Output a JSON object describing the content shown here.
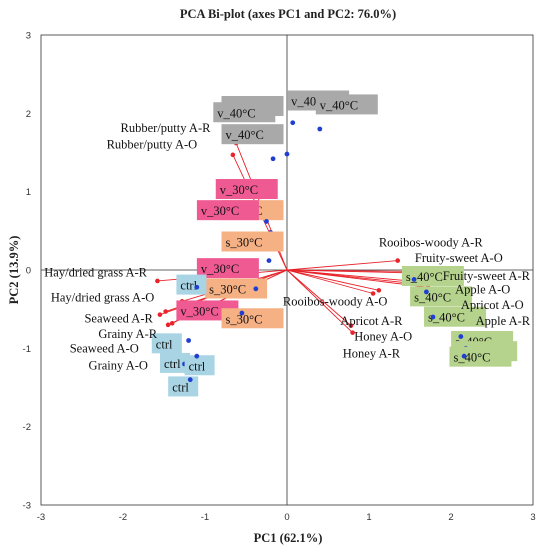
{
  "chart_data": {
    "type": "scatter",
    "title": "PCA Bi-plot (axes PC1 and PC2: 76.0%)",
    "xlabel": "PC1 (62.1%)",
    "ylabel": "PC2 (13.9%)",
    "xlim": [
      -3,
      3
    ],
    "ylim": [
      -3,
      3
    ],
    "xticks": [
      "-3",
      "-2",
      "-1",
      "0",
      "1",
      "2",
      "3"
    ],
    "yticks": [
      "-3",
      "-2",
      "-1",
      "0",
      "1",
      "2",
      "3"
    ],
    "grid": false,
    "colors": {
      "vector": "#e8232a",
      "observation": "#1f3fd1",
      "ctrl": "#a8d4e4",
      "s_30": "#f5b084",
      "v_30": "#ef5a93",
      "s_40": "#b5d38c",
      "v_40": "#a9a9a9"
    },
    "variables": [
      {
        "name": "Rubber/putty A-R",
        "x": -0.62,
        "y": 1.62
      },
      {
        "name": "Rubber/putty A-O",
        "x": -0.66,
        "y": 1.47
      },
      {
        "name": "Hay/dried grass A-R",
        "x": -1.58,
        "y": -0.14
      },
      {
        "name": "Hay/dried grass A-O",
        "x": -1.28,
        "y": -0.4
      },
      {
        "name": "Seaweed A-R",
        "x": -1.55,
        "y": -0.57
      },
      {
        "name": "Grainy A-R",
        "x": -1.45,
        "y": -0.7
      },
      {
        "name": "Seaweed A-O",
        "x": -1.48,
        "y": -0.53
      },
      {
        "name": "Grainy A-O",
        "x": -1.4,
        "y": -0.68
      },
      {
        "name": "Rooibos-woody A-R",
        "x": 1.35,
        "y": 0.12
      },
      {
        "name": "Fruity-sweet A-O",
        "x": 1.63,
        "y": -0.04
      },
      {
        "name": "Fruity-sweet A-R",
        "x": 1.68,
        "y": -0.02
      },
      {
        "name": "Apple A-O",
        "x": 1.5,
        "y": -0.14
      },
      {
        "name": "Apricot A-O",
        "x": 1.72,
        "y": -0.22
      },
      {
        "name": "Apple A-R",
        "x": 1.6,
        "y": -0.18
      },
      {
        "name": "Rooibos-woody A-O",
        "x": 1.12,
        "y": -0.26
      },
      {
        "name": "Apricot A-R",
        "x": 0.78,
        "y": -0.71
      },
      {
        "name": "Honey A-O",
        "x": 0.8,
        "y": -0.8
      },
      {
        "name": "Honey A-R",
        "x": 1.05,
        "y": -0.3
      }
    ],
    "observations": [
      {
        "label": "v_40°C",
        "group": "v_40",
        "x": 0.07,
        "y": 1.88
      },
      {
        "label": "v_40°C",
        "group": "v_40",
        "x": 0.4,
        "y": 1.8
      },
      {
        "label": "v_40°C",
        "group": "v_40",
        "x": -0.68,
        "y": 1.72
      },
      {
        "label": "v_40°C",
        "group": "v_40",
        "x": 0.0,
        "y": 1.48
      },
      {
        "label": "v_40°C",
        "group": "v_40",
        "x": -0.17,
        "y": 1.42
      },
      {
        "label": "v_30°C",
        "group": "v_30",
        "x": -0.2,
        "y": 0.48
      },
      {
        "label": "s_30°C",
        "group": "s_30",
        "x": -0.22,
        "y": 0.45
      },
      {
        "label": "v_30°C",
        "group": "v_30",
        "x": -0.25,
        "y": 0.62
      },
      {
        "label": "s_30°C",
        "group": "s_30",
        "x": -0.22,
        "y": 0.12
      },
      {
        "label": "v_30°C",
        "group": "v_30",
        "x": -0.42,
        "y": -0.14
      },
      {
        "label": "s_30°C",
        "group": "s_30",
        "x": -0.38,
        "y": -0.24
      },
      {
        "label": "v_30°C",
        "group": "v_30",
        "x": -0.75,
        "y": -0.58
      },
      {
        "label": "s_30°C",
        "group": "s_30",
        "x": -0.55,
        "y": -0.55
      },
      {
        "label": "ctrl",
        "group": "ctrl",
        "x": -1.1,
        "y": -0.22
      },
      {
        "label": "ctrl",
        "group": "ctrl",
        "x": -1.2,
        "y": -0.9
      },
      {
        "label": "ctrl",
        "group": "ctrl",
        "x": -1.25,
        "y": -1.2
      },
      {
        "label": "ctrl",
        "group": "ctrl",
        "x": -1.1,
        "y": -1.1
      },
      {
        "label": "ctrl",
        "group": "ctrl",
        "x": -1.18,
        "y": -1.4
      },
      {
        "label": "s_40°C",
        "group": "s_40",
        "x": 1.55,
        "y": -0.12
      },
      {
        "label": "s_40°C",
        "group": "s_40",
        "x": 1.7,
        "y": -0.28
      },
      {
        "label": "s_40°C",
        "group": "s_40",
        "x": 1.78,
        "y": -0.6
      },
      {
        "label": "s_40°C",
        "group": "s_40",
        "x": 2.12,
        "y": -0.85
      },
      {
        "label": "s_40°C",
        "group": "s_40",
        "x": 2.18,
        "y": -1.0
      },
      {
        "label": "s_40°C",
        "group": "s_40",
        "x": 2.16,
        "y": -1.1
      }
    ]
  }
}
